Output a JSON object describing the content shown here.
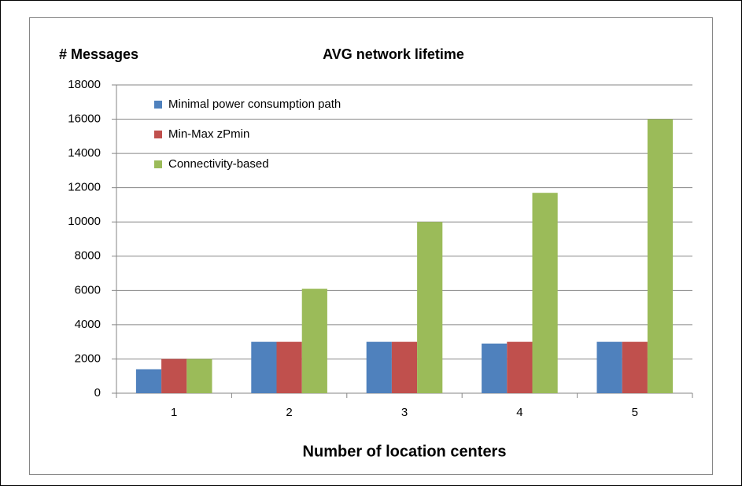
{
  "chart_data": {
    "type": "bar",
    "title": "AVG network lifetime",
    "y_label": "# Messages",
    "x_label": "Number of location centers",
    "categories": [
      "1",
      "2",
      "3",
      "4",
      "5"
    ],
    "series": [
      {
        "name": "Minimal power consumption path",
        "color": "#4f81bd",
        "values": [
          1400,
          3000,
          3000,
          2900,
          3000
        ]
      },
      {
        "name": "Min-Max zPmin",
        "color": "#c0504d",
        "values": [
          2000,
          3000,
          3000,
          3000,
          3000
        ]
      },
      {
        "name": "Connectivity-based",
        "color": "#9bbb59",
        "values": [
          2000,
          6100,
          10000,
          11700,
          16000
        ]
      }
    ],
    "ylim": [
      0,
      18000
    ],
    "yticks": [
      0,
      2000,
      4000,
      6000,
      8000,
      10000,
      12000,
      14000,
      16000,
      18000
    ],
    "grid": true,
    "legend": "upper left"
  }
}
